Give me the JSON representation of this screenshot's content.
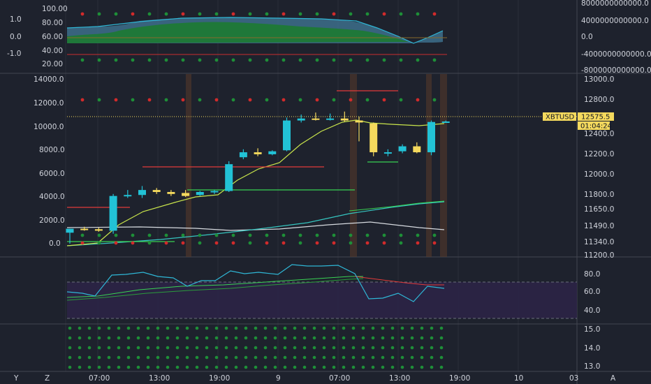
{
  "symbol": "XBTUSD",
  "price_label": "12575.5",
  "countdown": "01:04:24",
  "colors": {
    "bg": "#1e222d",
    "grid": "#2a2e39",
    "bull": "#22c2d6",
    "bear": "#f4d95d",
    "fast_ma": "#c9e54b",
    "teal_ma": "#35c6c0",
    "white_ma": "#d7dbe0",
    "support": "#39d353",
    "resistance": "#e23b3b",
    "rsi": "#2fb7d6",
    "rsi_band": "#2b2346",
    "dot_green": "#1e8f38",
    "dot_red": "#d22b2b",
    "session": "#5a3a2a",
    "tag_bg": "#f4d95d"
  },
  "time_axis": {
    "labels": [
      "07:00",
      "13:00",
      "19:00",
      "9",
      "07:00",
      "13:00",
      "19:00",
      "10",
      "03"
    ],
    "corner_left": "Y",
    "corner_z": "Z",
    "corner_right": "A"
  },
  "panes": {
    "osc": {
      "left_ticks": [
        "1.0",
        "0.0",
        "-1.0"
      ],
      "left_ticks_b": [
        "100.00",
        "80.00",
        "60.00",
        "40.00",
        "20.00"
      ],
      "right_ticks": [
        "8000000000000.0",
        "4000000000000.0",
        "0.0",
        "-4000000000000.0",
        "-8000000000000.0"
      ]
    },
    "main": {
      "left_ticks": [
        "14000.0",
        "12000.0",
        "10000.0",
        "8000.0",
        "6000.0",
        "4000.0",
        "2000.0",
        "0.0"
      ],
      "right_ticks": [
        "13000.0",
        "12800.0",
        "12600.0",
        "12400.0",
        "12200.0",
        "12000.0",
        "11800.0",
        "11650.0",
        "11490.0",
        "11340.0",
        "11200.0"
      ]
    },
    "rsi": {
      "right_ticks": [
        "80.0",
        "60.0",
        "40.0"
      ]
    },
    "bottom": {
      "right_ticks": [
        "15.0",
        "14.0",
        "13.0"
      ]
    }
  },
  "chart_data": {
    "type": "candlestick",
    "y_range": [
      11200,
      13000
    ],
    "candles": [
      {
        "o": 11430,
        "h": 11470,
        "l": 11320,
        "c": 11470
      },
      {
        "o": 11470,
        "h": 11490,
        "l": 11450,
        "c": 11460
      },
      {
        "o": 11465,
        "h": 11480,
        "l": 11440,
        "c": 11450
      },
      {
        "o": 11450,
        "h": 11820,
        "l": 11420,
        "c": 11800
      },
      {
        "o": 11805,
        "h": 11860,
        "l": 11780,
        "c": 11810
      },
      {
        "o": 11810,
        "h": 11900,
        "l": 11780,
        "c": 11860
      },
      {
        "o": 11860,
        "h": 11880,
        "l": 11820,
        "c": 11840
      },
      {
        "o": 11840,
        "h": 11860,
        "l": 11800,
        "c": 11820
      },
      {
        "o": 11830,
        "h": 11860,
        "l": 11790,
        "c": 11800
      },
      {
        "o": 11810,
        "h": 11850,
        "l": 11800,
        "c": 11840
      },
      {
        "o": 11840,
        "h": 11860,
        "l": 11820,
        "c": 11850
      },
      {
        "o": 11850,
        "h": 12150,
        "l": 11840,
        "c": 12120
      },
      {
        "o": 12190,
        "h": 12270,
        "l": 12170,
        "c": 12240
      },
      {
        "o": 12240,
        "h": 12280,
        "l": 12200,
        "c": 12220
      },
      {
        "o": 12220,
        "h": 12260,
        "l": 12210,
        "c": 12250
      },
      {
        "o": 12260,
        "h": 12590,
        "l": 12250,
        "c": 12560
      },
      {
        "o": 12560,
        "h": 12620,
        "l": 12540,
        "c": 12580
      },
      {
        "o": 12580,
        "h": 12640,
        "l": 12560,
        "c": 12570
      },
      {
        "o": 12570,
        "h": 12630,
        "l": 12560,
        "c": 12580
      },
      {
        "o": 12580,
        "h": 12650,
        "l": 12550,
        "c": 12560
      },
      {
        "o": 12560,
        "h": 12600,
        "l": 12350,
        "c": 12540
      },
      {
        "o": 12530,
        "h": 12540,
        "l": 12200,
        "c": 12240
      },
      {
        "o": 12240,
        "h": 12270,
        "l": 12200,
        "c": 12240
      },
      {
        "o": 12250,
        "h": 12320,
        "l": 12230,
        "c": 12300
      },
      {
        "o": 12300,
        "h": 12340,
        "l": 12230,
        "c": 12240
      },
      {
        "o": 12240,
        "h": 12560,
        "l": 12210,
        "c": 12545
      },
      {
        "o": 12550,
        "h": 12560,
        "l": 12545,
        "c": 12550
      }
    ]
  }
}
